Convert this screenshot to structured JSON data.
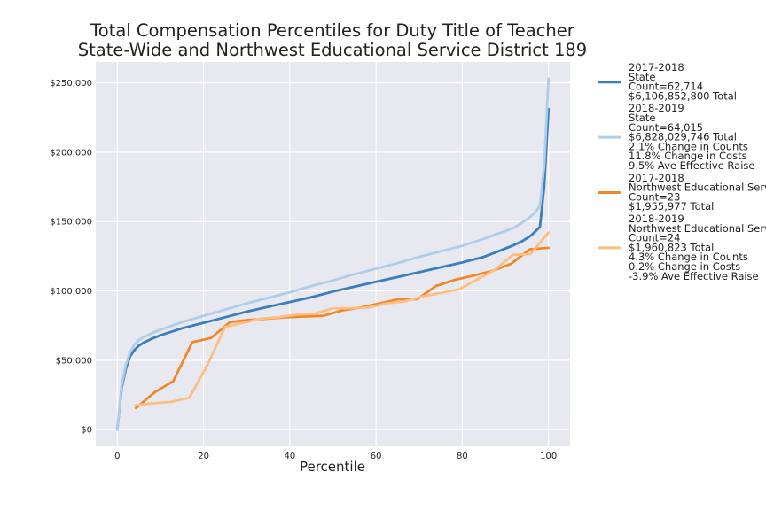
{
  "chart_data": {
    "type": "line",
    "title": "Total Compensation Percentiles for Duty Title of Teacher",
    "subtitle": "State-Wide and Northwest Educational Service District 189",
    "xlabel": "Percentile",
    "ylabel": "",
    "xlim": [
      -5,
      105
    ],
    "ylim": [
      -12000,
      265000
    ],
    "x_ticks": [
      0,
      20,
      40,
      60,
      80,
      100
    ],
    "x_tick_labels": [
      "0",
      "20",
      "40",
      "60",
      "80",
      "100"
    ],
    "y_ticks": [
      0,
      50000,
      100000,
      150000,
      200000,
      250000
    ],
    "y_tick_labels": [
      "$0",
      "$50,000",
      "$100,000",
      "$150,000",
      "$200,000",
      "$250,000"
    ],
    "grid": true,
    "legend_position": "outside-right",
    "plot_background": "#e8e8f0",
    "series": [
      {
        "name": "2017-2018 State",
        "legend_lines": [
          "2017-2018",
          "State",
          "Count=62,714",
          "$6,106,852,800 Total"
        ],
        "color": "#3a7fbb",
        "x": [
          0,
          1,
          2,
          3,
          4,
          5,
          6,
          8,
          10,
          15,
          20,
          25,
          30,
          35,
          40,
          45,
          50,
          55,
          60,
          65,
          70,
          75,
          80,
          85,
          88,
          90,
          92,
          94,
          95,
          96,
          97,
          98,
          99,
          100
        ],
        "y": [
          0,
          30000,
          44000,
          53000,
          57500,
          60500,
          62500,
          65500,
          68000,
          73000,
          77000,
          81000,
          85000,
          88500,
          92000,
          95500,
          99500,
          103000,
          106500,
          110000,
          113500,
          117000,
          120500,
          124500,
          128000,
          130500,
          133000,
          136000,
          138000,
          140000,
          143000,
          146000,
          175000,
          231000
        ]
      },
      {
        "name": "2018-2019 State",
        "legend_lines": [
          "2018-2019",
          "State",
          "Count=64,015",
          "$6,828,029,746 Total",
          "2.1% Change in Counts",
          "11.8% Change in Costs",
          "9.5% Ave Effective Raise"
        ],
        "color": "#aecde8",
        "x": [
          0,
          1,
          2,
          3,
          4,
          5,
          6,
          8,
          10,
          15,
          20,
          25,
          30,
          35,
          40,
          45,
          50,
          55,
          60,
          65,
          70,
          75,
          80,
          85,
          88,
          90,
          92,
          94,
          95,
          96,
          97,
          98,
          99,
          100
        ],
        "y": [
          0,
          32000,
          47000,
          56000,
          61500,
          64500,
          66500,
          69500,
          72000,
          77500,
          82000,
          86500,
          91000,
          95000,
          99000,
          103500,
          107500,
          112000,
          116000,
          120000,
          124500,
          128500,
          132500,
          137500,
          141000,
          143000,
          145500,
          149500,
          151500,
          154000,
          157000,
          161000,
          190000,
          253000
        ]
      },
      {
        "name": "2017-2018 Northwest Educational Service District 189",
        "legend_lines": [
          "2017-2018",
          "Northwest Educational Servic",
          "Count=23",
          "$1,955,977 Total"
        ],
        "color": "#f0882a",
        "x": [
          4.3,
          8.7,
          13,
          17.4,
          21.7,
          26.1,
          30.4,
          34.8,
          39.1,
          43.5,
          47.8,
          52.2,
          56.5,
          60.9,
          65.2,
          69.6,
          73.9,
          78.3,
          82.6,
          87,
          91.3,
          95.7,
          100
        ],
        "y": [
          15500,
          27000,
          35000,
          63000,
          66000,
          77500,
          79000,
          80000,
          81000,
          81500,
          82000,
          86000,
          88000,
          91000,
          94000,
          94000,
          103500,
          108000,
          111000,
          114500,
          119500,
          130000,
          131000
        ]
      },
      {
        "name": "2018-2019 Northwest Educational Service District 189",
        "legend_lines": [
          "2018-2019",
          "Northwest Educational Servic",
          "Count=24",
          "$1,960,823 Total",
          "4.3% Change in Counts",
          "0.2% Change in Costs",
          "-3.9% Ave Effective Raise"
        ],
        "color": "#fdbf80",
        "x": [
          4.2,
          8.3,
          12.5,
          16.7,
          20.8,
          25,
          29.2,
          33.3,
          37.5,
          41.7,
          45.8,
          50,
          54.2,
          58.3,
          62.5,
          66.7,
          70.8,
          75,
          79.2,
          83.3,
          87.5,
          91.7,
          95.8,
          100
        ],
        "y": [
          17500,
          19000,
          20000,
          23000,
          46000,
          74000,
          77000,
          80000,
          81000,
          83000,
          83500,
          87500,
          87500,
          88000,
          91000,
          92500,
          96000,
          98500,
          101000,
          108000,
          115000,
          126000,
          126500,
          142000
        ]
      }
    ]
  }
}
